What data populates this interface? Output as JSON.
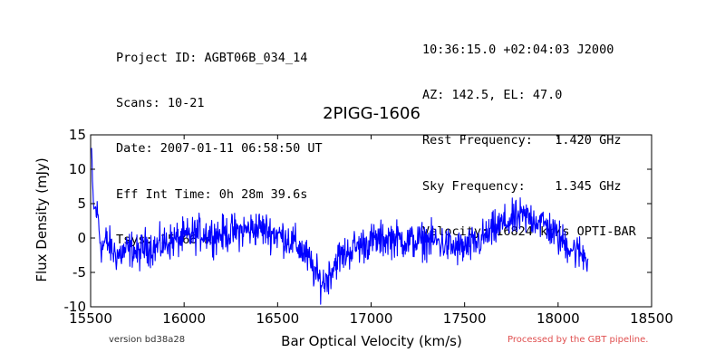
{
  "header": {
    "left": [
      "Project ID: AGBT06B_034_14",
      "Scans: 10-21",
      "Date: 2007-01-11 06:58:50 UT",
      "Eff Int Time: 0h 28m 39.6s",
      "Tsys: 15.66 K"
    ],
    "right": [
      "10:36:15.0 +02:04:03 J2000",
      "AZ: 142.5, EL: 47.0",
      "Rest Frequency:   1.420 GHz",
      "Sky Frequency:    1.345 GHz",
      "Velocity: 16824 km/s OPTI-BAR"
    ]
  },
  "footer": {
    "version": "version bd38a28",
    "pipeline": "Processed by the GBT pipeline."
  },
  "colors": {
    "line": "#0000ff",
    "pipeline_text": "#e05050"
  },
  "chart_data": {
    "type": "line",
    "title": "2PIGG-1606",
    "xlabel": "Bar Optical Velocity (km/s)",
    "ylabel": "Flux Density (mJy)",
    "xlim": [
      15500,
      18500
    ],
    "ylim": [
      -10,
      15
    ],
    "xticks": [
      15500,
      16000,
      16500,
      17000,
      17500,
      18000,
      18500
    ],
    "yticks": [
      -10,
      -5,
      0,
      5,
      10,
      15
    ],
    "grid": false,
    "series": [
      {
        "x": [
          15505,
          15510,
          15515,
          15520,
          15525,
          15530,
          15540,
          15550,
          15560,
          15570,
          15580,
          15600,
          15620,
          15650,
          15680,
          15700,
          15720,
          15740,
          15750,
          15760,
          15780,
          15800,
          15830,
          15860,
          15900,
          15950,
          16000,
          16050,
          16100,
          16150,
          16200,
          16250,
          16300,
          16350,
          16400,
          16450,
          16500,
          16550,
          16600,
          16620,
          16650,
          16680,
          16700,
          16720,
          16740,
          16760,
          16780,
          16800,
          16820,
          16850,
          16880,
          16900,
          16950,
          17000,
          17050,
          17100,
          17150,
          17200,
          17250,
          17300,
          17350,
          17400,
          17450,
          17500,
          17550,
          17600,
          17650,
          17700,
          17750,
          17800,
          17850,
          17900,
          17950,
          18000,
          18050,
          18100,
          18140,
          18160
        ],
        "y": [
          13,
          8,
          5,
          4,
          4.5,
          4,
          3,
          0,
          -1.5,
          -1,
          -0.5,
          -1,
          -2,
          -2.5,
          -2,
          -1.8,
          -1.5,
          -2,
          -2.5,
          -2.2,
          -1.5,
          -1,
          -1.5,
          -1.2,
          -0.8,
          -0.3,
          0,
          0.5,
          0.8,
          0.5,
          0.5,
          0.8,
          1,
          1.2,
          1.5,
          1,
          0.5,
          0,
          -1,
          -1.5,
          -2.5,
          -4,
          -5,
          -6,
          -6.5,
          -6,
          -5,
          -4,
          -3,
          -2.5,
          -2,
          -1.5,
          -1,
          -0.5,
          -0.3,
          0,
          -0.2,
          -0.5,
          -0.5,
          -0.3,
          -0.5,
          -1,
          -1.5,
          -1.5,
          -1,
          0,
          1,
          2,
          2.5,
          3,
          3,
          2.5,
          1.5,
          0,
          -1,
          -2,
          -2.5,
          -3
        ]
      }
    ]
  }
}
